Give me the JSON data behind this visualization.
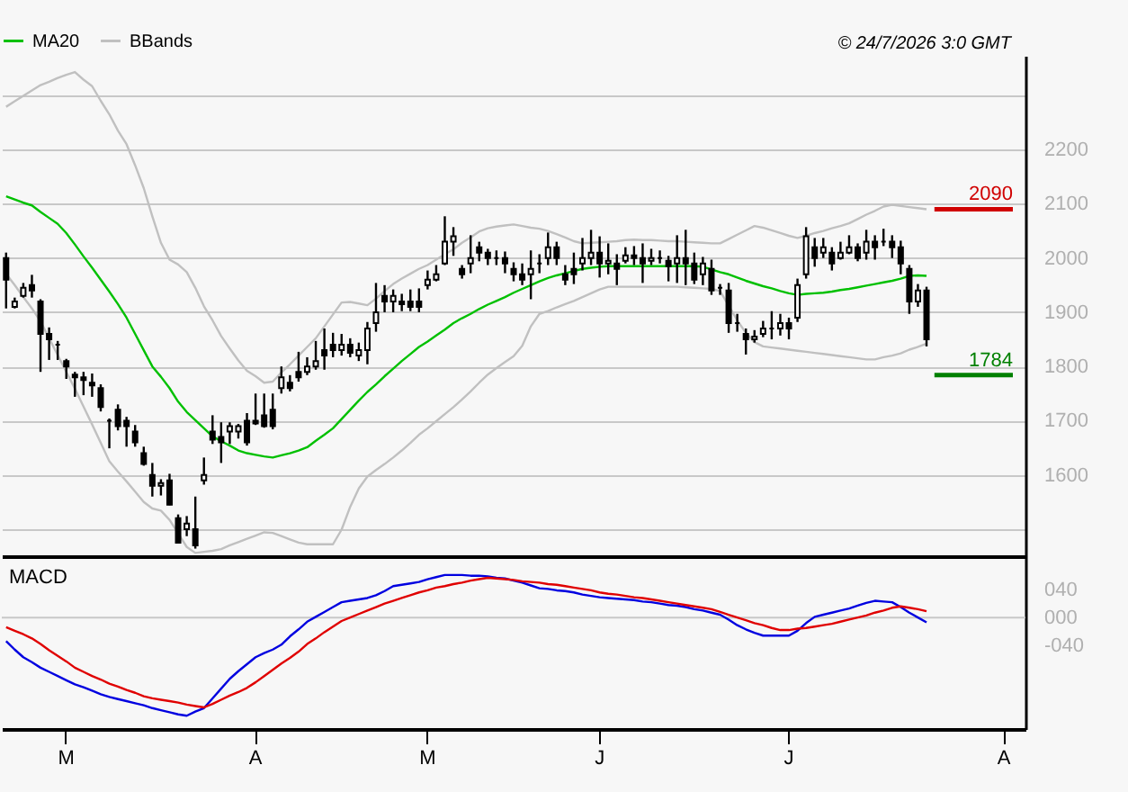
{
  "chart_data": [
    {
      "type": "candlestick",
      "legend": "top left",
      "grid": "y",
      "annotations": [
        "© 24/7/2026 3:0 GMT"
      ],
      "categories": [
        null,
        null,
        null,
        null,
        null,
        null,
        null,
        null,
        null,
        null,
        null,
        null,
        null,
        null,
        null,
        null,
        null,
        null,
        null,
        null,
        null,
        null,
        null,
        null,
        null,
        null,
        null,
        null,
        null,
        null,
        null,
        null,
        null,
        null,
        null,
        null,
        null,
        null,
        null,
        null,
        null,
        null,
        null,
        null,
        null,
        null,
        null,
        null,
        null,
        null,
        null,
        null,
        null,
        null,
        null,
        null,
        null,
        null,
        null,
        null,
        null,
        null,
        null,
        null,
        null,
        null,
        null,
        null,
        null,
        null,
        null,
        null,
        null,
        null,
        null,
        null,
        null,
        null,
        null,
        null,
        null,
        null,
        null,
        null,
        null,
        null,
        null,
        null,
        null,
        null,
        null,
        null,
        null,
        null,
        null,
        null,
        null,
        null,
        null,
        null,
        null,
        null,
        null,
        null,
        null,
        null,
        null,
        null,
        null,
        null,
        null,
        null,
        null,
        null,
        null,
        null,
        null,
        null,
        null
      ],
      "ylim": [
        1450,
        2373
      ],
      "yticks": [
        {
          "value": 1500,
          "label": null
        },
        1600,
        1700,
        1800,
        1900,
        2000,
        2100,
        2200,
        {
          "value": 2300,
          "label": null
        }
      ],
      "ohlc": [
        [
          2000,
          2010,
          1907,
          1960
        ],
        [
          1910,
          1927,
          1907,
          1920
        ],
        [
          1930,
          1954,
          1927,
          1945
        ],
        [
          1950,
          1969,
          1927,
          1940
        ],
        [
          1920,
          1924,
          1790,
          1860
        ],
        [
          1860,
          1872,
          1812,
          1850
        ],
        [
          1840,
          1847,
          1812,
          1840
        ],
        [
          1810,
          1814,
          1777,
          1800
        ],
        [
          1785,
          1790,
          1744,
          1780
        ],
        [
          1780,
          1790,
          1747,
          1775
        ],
        [
          1770,
          1787,
          1744,
          1765
        ],
        [
          1760,
          1767,
          1717,
          1725
        ],
        [
          1700,
          1704,
          1649,
          1700
        ],
        [
          1720,
          1730,
          1682,
          1690
        ],
        [
          1700,
          1707,
          1652,
          1690
        ],
        [
          1680,
          1692,
          1652,
          1660
        ],
        [
          1640,
          1652,
          1617,
          1620
        ],
        [
          1600,
          1622,
          1560,
          1580
        ],
        [
          1580,
          1592,
          1562,
          1585
        ],
        [
          1590,
          1602,
          1544,
          1545
        ],
        [
          1520,
          1527,
          1474,
          1475
        ],
        [
          1500,
          1524,
          1487,
          1510
        ],
        [
          1500,
          1560,
          1464,
          1470
        ],
        [
          1590,
          1632,
          1582,
          1600
        ],
        [
          1680,
          1710,
          1657,
          1665
        ],
        [
          1670,
          1697,
          1622,
          1660
        ],
        [
          1680,
          1697,
          1657,
          1690
        ],
        [
          1680,
          1694,
          1667,
          1690
        ],
        [
          1700,
          1714,
          1654,
          1660
        ],
        [
          1700,
          1750,
          1692,
          1695
        ],
        [
          1710,
          1750,
          1687,
          1690
        ],
        [
          1720,
          1750,
          1684,
          1690
        ],
        [
          1760,
          1800,
          1750,
          1780
        ],
        [
          1770,
          1784,
          1754,
          1760
        ],
        [
          1790,
          1827,
          1772,
          1780
        ],
        [
          1790,
          1817,
          1784,
          1800
        ],
        [
          1800,
          1847,
          1794,
          1810
        ],
        [
          1830,
          1870,
          1794,
          1820
        ],
        [
          1840,
          1862,
          1817,
          1830
        ],
        [
          1830,
          1860,
          1820,
          1840
        ],
        [
          1840,
          1852,
          1817,
          1825
        ],
        [
          1820,
          1844,
          1810,
          1830
        ],
        [
          1830,
          1882,
          1804,
          1870
        ],
        [
          1880,
          1954,
          1864,
          1900
        ],
        [
          1930,
          1950,
          1900,
          1920
        ],
        [
          1920,
          1942,
          1900,
          1930
        ],
        [
          1920,
          1934,
          1902,
          1915
        ],
        [
          1920,
          1942,
          1902,
          1910
        ],
        [
          1920,
          1944,
          1900,
          1910
        ],
        [
          1950,
          1977,
          1942,
          1960
        ],
        [
          1960,
          1987,
          1957,
          1970
        ],
        [
          1990,
          2077,
          1987,
          2030
        ],
        [
          2030,
          2057,
          2004,
          2040
        ],
        [
          1980,
          1987,
          1962,
          1970
        ],
        [
          1990,
          2042,
          1972,
          2000
        ],
        [
          2020,
          2030,
          1994,
          2010
        ],
        [
          2010,
          2017,
          1987,
          2000
        ],
        [
          2000,
          2014,
          1987,
          2000
        ],
        [
          2000,
          2012,
          1972,
          1990
        ],
        [
          1980,
          1992,
          1957,
          1970
        ],
        [
          1970,
          1990,
          1950,
          1960
        ],
        [
          1970,
          2014,
          1924,
          1980
        ],
        [
          1990,
          2007,
          1972,
          1990
        ],
        [
          2000,
          2047,
          1987,
          2020
        ],
        [
          2020,
          2030,
          1987,
          2000
        ],
        [
          1970,
          1987,
          1950,
          1960
        ],
        [
          1980,
          2010,
          1952,
          1970
        ],
        [
          1990,
          2037,
          1977,
          2000
        ],
        [
          2000,
          2052,
          1987,
          2010
        ],
        [
          2010,
          2040,
          1964,
          1990
        ],
        [
          1990,
          2027,
          1970,
          1995
        ],
        [
          1990,
          2007,
          1950,
          1980
        ],
        [
          1995,
          2020,
          1990,
          2005
        ],
        [
          2005,
          2022,
          1987,
          2000
        ],
        [
          2000,
          2027,
          1954,
          1990
        ],
        [
          1995,
          2017,
          1987,
          2000
        ],
        [
          2000,
          2014,
          1990,
          2000
        ],
        [
          1995,
          2004,
          1957,
          1985
        ],
        [
          1990,
          2042,
          1954,
          2000
        ],
        [
          2000,
          2052,
          1950,
          1990
        ],
        [
          1990,
          2010,
          1952,
          1960
        ],
        [
          1970,
          2002,
          1950,
          1990
        ],
        [
          1980,
          1997,
          1932,
          1940
        ],
        [
          1945,
          1952,
          1932,
          1945
        ],
        [
          1940,
          1954,
          1862,
          1880
        ],
        [
          1880,
          1897,
          1864,
          1880
        ],
        [
          1860,
          1870,
          1822,
          1850
        ],
        [
          1850,
          1867,
          1844,
          1855
        ],
        [
          1860,
          1884,
          1854,
          1870
        ],
        [
          1870,
          1902,
          1850,
          1870
        ],
        [
          1870,
          1897,
          1857,
          1880
        ],
        [
          1880,
          1890,
          1850,
          1870
        ],
        [
          1890,
          1962,
          1882,
          1950
        ],
        [
          1970,
          2057,
          1962,
          2040
        ],
        [
          2020,
          2037,
          1984,
          2000
        ],
        [
          2010,
          2037,
          2000,
          2020
        ],
        [
          2010,
          2020,
          1977,
          1990
        ],
        [
          2000,
          2030,
          1997,
          2010
        ],
        [
          2010,
          2042,
          2007,
          2020
        ],
        [
          2020,
          2027,
          1994,
          2000
        ],
        [
          2010,
          2052,
          1997,
          2030
        ],
        [
          2030,
          2042,
          1997,
          2020
        ],
        [
          2030,
          2054,
          2022,
          2030
        ],
        [
          2030,
          2042,
          2000,
          2020
        ],
        [
          2020,
          2032,
          1970,
          1990
        ],
        [
          1980,
          1987,
          1897,
          1920
        ],
        [
          1920,
          1952,
          1910,
          1940
        ],
        [
          1940,
          1947,
          1837,
          1850
        ],
        null,
        null,
        null,
        null,
        null,
        null,
        null,
        null,
        null,
        null,
        null
      ],
      "series": [
        {
          "name": "MA20",
          "type": "line",
          "color": "#00c000",
          "values": [
            2114,
            2108,
            2102,
            2097,
            2085,
            2074,
            2063,
            2046,
            2025,
            2003,
            1982,
            1960,
            1938,
            1915,
            1890,
            1860,
            1830,
            1800,
            1781,
            1760,
            1735,
            1716,
            1701,
            1686,
            1671,
            1662,
            1654,
            1645,
            1640,
            1637,
            1634,
            1632,
            1636,
            1640,
            1645,
            1651,
            1663,
            1674,
            1686,
            1703,
            1720,
            1737,
            1753,
            1767,
            1782,
            1796,
            1810,
            1823,
            1836,
            1846,
            1857,
            1868,
            1880,
            1889,
            1897,
            1906,
            1914,
            1921,
            1928,
            1936,
            1943,
            1950,
            1957,
            1963,
            1968,
            1972,
            1976,
            1980,
            1982,
            1984,
            1985,
            1985,
            1985,
            1985,
            1985,
            1985,
            1985,
            1985,
            1985,
            1985,
            1985,
            1984,
            1979,
            1974,
            1970,
            1964,
            1958,
            1953,
            1948,
            1944,
            1939,
            1935,
            1932,
            1934,
            1935,
            1936,
            1938,
            1941,
            1943,
            1946,
            1949,
            1952,
            1955,
            1958,
            1962,
            1967,
            1968,
            1967,
            null,
            null,
            null,
            null,
            null,
            null,
            null,
            null,
            null,
            null,
            null
          ]
        },
        {
          "name": "BBands",
          "type": "line",
          "color": "#c0c0c0",
          "values": [
            2279,
            2289,
            2299,
            2309,
            2319,
            2325,
            2332,
            2338,
            2343,
            2329,
            2317,
            2290,
            2265,
            2235,
            2210,
            2171,
            2129,
            2077,
            2028,
            1997,
            1988,
            1974,
            1945,
            1911,
            1885,
            1856,
            1833,
            1811,
            1792,
            1782,
            1770,
            1772,
            1789,
            1804,
            1820,
            1836,
            1852,
            1874,
            1896,
            1918,
            1919,
            1916,
            1913,
            1925,
            1939,
            1952,
            1962,
            1971,
            1980,
            1987,
            1997,
            2007,
            2016,
            2028,
            2038,
            2049,
            2055,
            2058,
            2060,
            2062,
            2059,
            2056,
            2054,
            2050,
            2044,
            2038,
            2031,
            2027,
            2028,
            2029,
            2030,
            2031,
            2033,
            2034,
            2033,
            2033,
            2032,
            2031,
            2031,
            2030,
            2029,
            2028,
            2027,
            2027,
            2035,
            2043,
            2051,
            2059,
            2056,
            2051,
            2046,
            2041,
            2037,
            2041,
            2046,
            2050,
            2055,
            2059,
            2064,
            2072,
            2080,
            2087,
            2095,
            2098,
            2096,
            2094,
            2092,
            2090,
            null,
            null,
            null,
            null,
            null,
            null,
            null,
            null,
            null,
            null,
            null
          ]
        },
        {
          "type": "line",
          "color": "#c0c0c0",
          "values": [
            1971,
            1950,
            1928,
            1907,
            1883,
            1852,
            1821,
            1790,
            1759,
            1726,
            1693,
            1659,
            1625,
            1606,
            1588,
            1569,
            1550,
            1538,
            1534,
            1517,
            1492,
            1467,
            1456,
            1458,
            1460,
            1463,
            1470,
            1476,
            1482,
            1488,
            1494,
            1493,
            1487,
            1481,
            1475,
            1472,
            1472,
            1472,
            1472,
            1499,
            1541,
            1575,
            1597,
            1609,
            1620,
            1632,
            1645,
            1659,
            1674,
            1686,
            1699,
            1712,
            1725,
            1739,
            1754,
            1770,
            1785,
            1797,
            1808,
            1819,
            1838,
            1874,
            1897,
            1902,
            1909,
            1915,
            1921,
            1928,
            1935,
            1942,
            1947,
            1947,
            1947,
            1947,
            1947,
            1947,
            1947,
            1947,
            1947,
            1946,
            1945,
            1944,
            1943,
            1939,
            1912,
            1885,
            1862,
            1845,
            1837,
            1835,
            1833,
            1831,
            1829,
            1827,
            1825,
            1823,
            1821,
            1819,
            1817,
            1815,
            1813,
            1813,
            1817,
            1820,
            1824,
            1831,
            1836,
            1842,
            null,
            null,
            null,
            null,
            null,
            null,
            null,
            null,
            null,
            null,
            null
          ]
        }
      ],
      "ref_lines": [
        {
          "axis": "y",
          "value": 2090,
          "label": "2090",
          "color": "#d00000"
        },
        {
          "axis": "y",
          "value": 1784,
          "label": "1784",
          "color": "#008000"
        }
      ]
    },
    {
      "type": "line",
      "title": "MACD",
      "categories": [
        null,
        null,
        null,
        null,
        null,
        null,
        null,
        "M",
        null,
        null,
        null,
        null,
        null,
        null,
        null,
        null,
        null,
        null,
        null,
        null,
        null,
        null,
        null,
        null,
        null,
        null,
        null,
        null,
        null,
        "A",
        null,
        null,
        null,
        null,
        null,
        null,
        null,
        null,
        null,
        null,
        null,
        null,
        null,
        null,
        null,
        null,
        null,
        null,
        null,
        "M",
        null,
        null,
        null,
        null,
        null,
        null,
        null,
        null,
        null,
        null,
        null,
        null,
        null,
        null,
        null,
        null,
        null,
        null,
        null,
        "J",
        null,
        null,
        null,
        null,
        null,
        null,
        null,
        null,
        null,
        null,
        null,
        null,
        null,
        null,
        null,
        null,
        null,
        null,
        null,
        null,
        null,
        "J",
        null,
        null,
        null,
        null,
        null,
        null,
        null,
        null,
        null,
        null,
        null,
        null,
        null,
        null,
        null,
        null,
        null,
        null,
        null,
        null,
        null,
        null,
        null,
        null,
        "A",
        null,
        null
      ],
      "ylim": [
        -160,
        88
      ],
      "yticks": [
        {
          "value": 40,
          "label": "040"
        },
        {
          "value": 0,
          "label": "000"
        },
        {
          "value": -40,
          "label": "-040"
        }
      ],
      "ref_lines": [
        {
          "axis": "y",
          "value": 0,
          "color": "#c8c8c8"
        }
      ],
      "series": [
        {
          "color": "#0000e0",
          "values": [
            -34,
            -46,
            -57,
            -64,
            -72,
            -78,
            -84,
            -90,
            -96,
            -100,
            -105,
            -110,
            -114,
            -117,
            -120,
            -123,
            -126,
            -130,
            -133,
            -136,
            -139,
            -141,
            -135,
            -130,
            -116,
            -102,
            -88,
            -77,
            -67,
            -57,
            -51,
            -46,
            -39,
            -27,
            -17,
            -6,
            1,
            8,
            15,
            22,
            24,
            26,
            28,
            32,
            38,
            45,
            47,
            49,
            51,
            55,
            58,
            61,
            61,
            61,
            60,
            60,
            59,
            57,
            56,
            53,
            50,
            46,
            42,
            41,
            39,
            38,
            36,
            33,
            31,
            29,
            28,
            27,
            26,
            25,
            23,
            22,
            20,
            18,
            17,
            15,
            12,
            10,
            7,
            4,
            -3,
            -11,
            -17,
            -22,
            -26,
            -26,
            -26,
            -26,
            -19,
            -8,
            1,
            4,
            7,
            10,
            13,
            17,
            21,
            24,
            23,
            22,
            15,
            7,
            0,
            -7,
            null,
            null,
            null,
            null,
            null,
            null,
            null,
            null,
            null,
            null,
            null
          ]
        },
        {
          "color": "#e00000",
          "values": [
            -14,
            -19,
            -24,
            -30,
            -38,
            -47,
            -55,
            -63,
            -72,
            -78,
            -84,
            -89,
            -95,
            -99,
            -104,
            -108,
            -113,
            -116,
            -118,
            -120,
            -122,
            -125,
            -127,
            -129,
            -124,
            -118,
            -112,
            -107,
            -101,
            -93,
            -84,
            -75,
            -66,
            -58,
            -49,
            -38,
            -30,
            -21,
            -13,
            -5,
            0,
            5,
            10,
            15,
            20,
            24,
            28,
            32,
            36,
            39,
            43,
            45,
            48,
            50,
            53,
            55,
            57,
            56,
            55,
            54,
            52,
            51,
            50,
            48,
            47,
            45,
            43,
            41,
            39,
            36,
            34,
            33,
            31,
            29,
            28,
            26,
            24,
            22,
            20,
            18,
            16,
            14,
            12,
            8,
            4,
            0,
            -4,
            -8,
            -11,
            -15,
            -18,
            -18,
            -16,
            -15,
            -13,
            -11,
            -9,
            -6,
            -3,
            0,
            3,
            7,
            10,
            14,
            16,
            14,
            12,
            9,
            null,
            null,
            null,
            null,
            null,
            null,
            null,
            null,
            null,
            null,
            null
          ]
        }
      ]
    }
  ]
}
